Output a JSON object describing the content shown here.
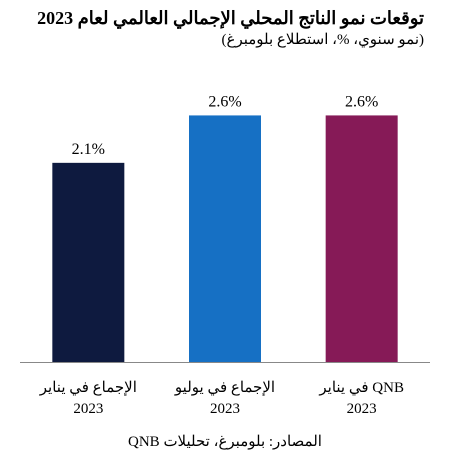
{
  "chart_data": {
    "type": "bar",
    "title": "توقعات نمو الناتج المحلي الإجمالي العالمي لعام 2023",
    "subtitle": "(نمو سنوي، %، استطلاع بلومبرغ)",
    "categories": [
      [
        "الإجماع في يناير",
        "2023"
      ],
      [
        "الإجماع في يوليو",
        "2023"
      ],
      [
        "QNB في يناير",
        "2023"
      ]
    ],
    "values": [
      2.1,
      2.6,
      2.6
    ],
    "data_labels": [
      "2.1%",
      "2.6%",
      "2.6%"
    ],
    "colors": [
      "#0e1a3f",
      "#1670c4",
      "#861a57"
    ],
    "ylim": [
      0,
      3.1
    ],
    "grid": false,
    "axis_color": "#888888",
    "source": "المصادر: بلومبرغ، تحليلات QNB"
  }
}
